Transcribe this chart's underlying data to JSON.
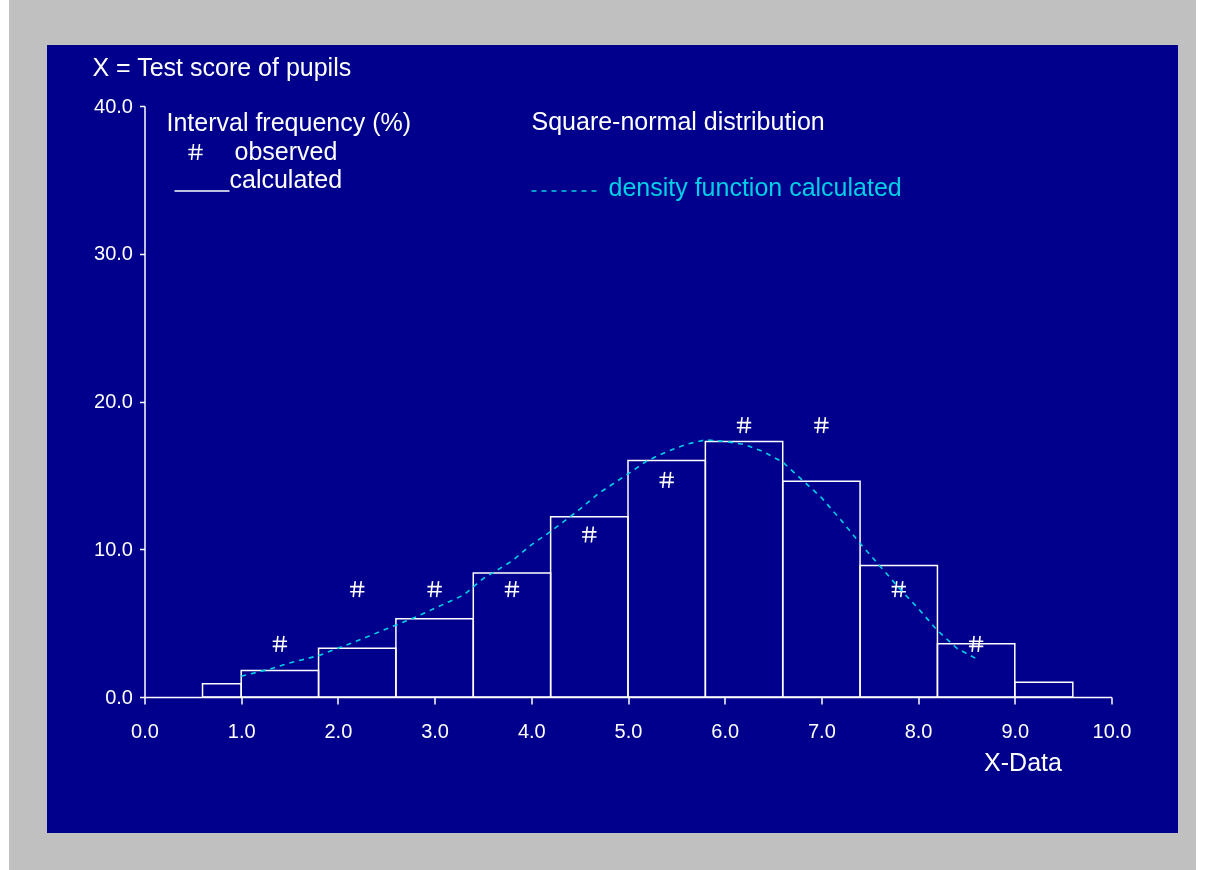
{
  "chart_data": {
    "type": "histogram",
    "subtitle": "X = Test score of pupils",
    "xlabel": "X-Data",
    "legend_title": "Interval frequency (%)",
    "annotations": [
      "Square-normal distribution"
    ],
    "bins": [
      0.6,
      1.0,
      1.8,
      2.6,
      3.4,
      4.2,
      5.0,
      5.8,
      6.6,
      7.4,
      8.2,
      9.0,
      9.6
    ],
    "series": [
      {
        "name": "calculated",
        "color": "#ffffff",
        "values": [
          0.9,
          1.8,
          3.3,
          5.3,
          8.4,
          12.2,
          16.0,
          17.3,
          14.6,
          8.9,
          3.6,
          1.0
        ]
      },
      {
        "name": "observed",
        "type": "scatter",
        "marker": "cross",
        "color": "#ffffff",
        "x": [
          1.4,
          2.2,
          3.0,
          3.8,
          4.6,
          5.4,
          6.2,
          7.0,
          7.8,
          8.6
        ],
        "values": [
          3.6,
          7.3,
          7.3,
          7.3,
          11.0,
          14.7,
          18.4,
          18.4,
          7.3,
          3.6
        ]
      },
      {
        "name": "density function calculated",
        "type": "line",
        "color": "#00cfe6",
        "x": [
          1.0,
          1.3,
          1.5,
          1.8,
          2.0,
          2.2,
          2.5,
          2.8,
          3.0,
          3.3,
          3.5,
          3.8,
          4.0,
          4.2,
          4.5,
          4.7,
          5.0,
          5.2,
          5.4,
          5.6,
          5.8,
          6.0,
          6.2,
          6.4,
          6.6,
          6.8,
          7.0,
          7.2,
          7.4,
          7.6,
          7.8,
          8.0,
          8.2,
          8.4,
          8.6
        ],
        "values": [
          1.4,
          1.9,
          2.3,
          2.8,
          3.3,
          3.8,
          4.6,
          5.4,
          6.0,
          6.9,
          8.0,
          9.2,
          10.3,
          11.2,
          12.7,
          13.8,
          15.1,
          16.0,
          16.6,
          17.1,
          17.4,
          17.3,
          17.1,
          16.6,
          15.9,
          14.7,
          13.5,
          12.0,
          10.4,
          8.9,
          7.4,
          6.0,
          4.5,
          3.3,
          2.6
        ]
      }
    ],
    "xlim": [
      0,
      10
    ],
    "xticks": [
      {
        "value": 0,
        "label": "0.0"
      },
      {
        "value": 1,
        "label": "1.0"
      },
      {
        "value": 2,
        "label": "2.0"
      },
      {
        "value": 3,
        "label": "3.0"
      },
      {
        "value": 4,
        "label": "4.0"
      },
      {
        "value": 5,
        "label": "5.0"
      },
      {
        "value": 6,
        "label": "6.0"
      },
      {
        "value": 7,
        "label": "7.0"
      },
      {
        "value": 8,
        "label": "8.0"
      },
      {
        "value": 9,
        "label": "9.0"
      },
      {
        "value": 10,
        "label": "10.0"
      }
    ],
    "ylim": [
      0,
      40
    ],
    "yticks": [
      {
        "value": 0,
        "label": "0.0"
      },
      {
        "value": 10,
        "label": "10.0"
      },
      {
        "value": 20,
        "label": "20.0"
      },
      {
        "value": 30,
        "label": "30.0"
      },
      {
        "value": 40,
        "label": "40.0"
      }
    ],
    "legend": "top left",
    "line_style": "dashed"
  }
}
